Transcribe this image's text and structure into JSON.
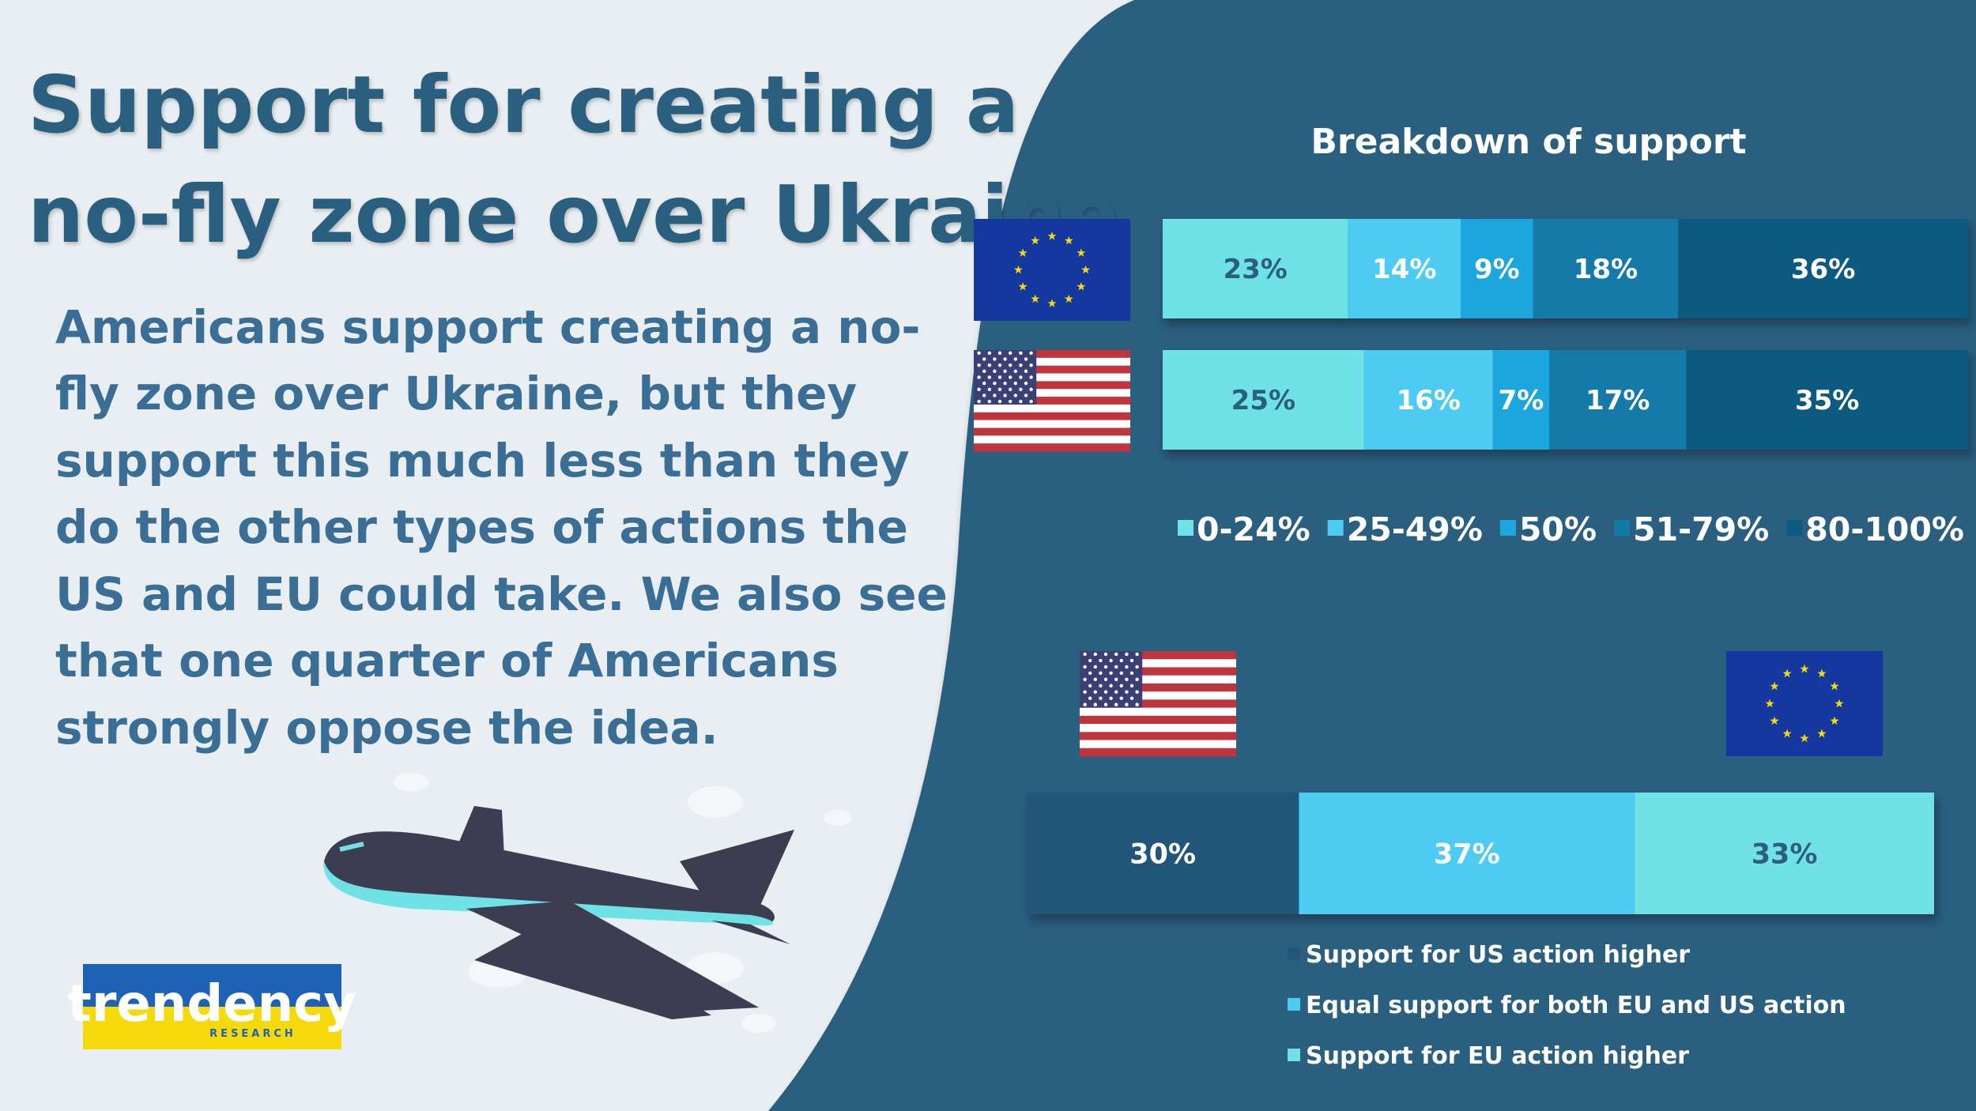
{
  "header": {
    "title": [
      "Support for creating a",
      "no-fly zone over Ukraine"
    ],
    "body": [
      "Americans support creating a no-",
      "fly zone over Ukraine, but they",
      "support this much less than they",
      "do the other types of actions the",
      "US and EU could take. We also see",
      "that one quarter of Americans",
      "strongly oppose the idea."
    ]
  },
  "logo": {
    "text": "trendency",
    "subtext": "RESEARCH"
  },
  "chart_data": [
    {
      "type": "bar",
      "orientation": "horizontal",
      "stacked": true,
      "title": "Breakdown of support",
      "categories": [
        null,
        null
      ],
      "xlim": [
        0,
        100
      ],
      "series": [
        {
          "name": "0-24%",
          "color": "#6fe2e6",
          "values": [
            23,
            25
          ],
          "value_labels": [
            "23%",
            "25%"
          ]
        },
        {
          "name": "25-49%",
          "color": "#4ecbf2",
          "values": [
            14,
            16
          ],
          "value_labels": [
            "14%",
            "16%"
          ]
        },
        {
          "name": "50%",
          "color": "#1ea6de",
          "values": [
            9,
            7
          ],
          "value_labels": [
            "9%",
            "7%"
          ]
        },
        {
          "name": "51-79%",
          "color": "#137aa8",
          "values": [
            18,
            17
          ],
          "value_labels": [
            "18%",
            "17%"
          ]
        },
        {
          "name": "80-100%",
          "color": "#0c5a80",
          "values": [
            36,
            35
          ],
          "value_labels": [
            "36%",
            "35%"
          ]
        }
      ]
    },
    {
      "type": "bar",
      "orientation": "horizontal",
      "stacked": true,
      "categories": [
        null
      ],
      "xlim": [
        0,
        100
      ],
      "series": [
        {
          "name": "Support for US action higher",
          "color": "#24557a",
          "values": [
            30
          ],
          "value_labels": [
            "30%"
          ]
        },
        {
          "name": "Equal support for both EU and US action",
          "color": "#4ecbf2",
          "values": [
            37
          ],
          "value_labels": [
            "37%"
          ]
        },
        {
          "name": "Support for EU action higher",
          "color": "#6fe2e6",
          "values": [
            33
          ],
          "value_labels": [
            "33%"
          ]
        }
      ]
    }
  ]
}
